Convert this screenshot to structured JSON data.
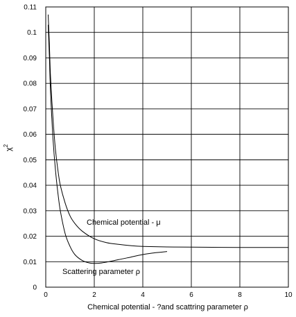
{
  "chart_data": {
    "type": "line",
    "xlabel": "Chemical potential - ?and scattring parameter ρ",
    "ylabel_base": "χ",
    "ylabel_sup": "2",
    "xlim": [
      0,
      10
    ],
    "ylim": [
      0,
      0.11
    ],
    "xticks": [
      "0",
      "2",
      "4",
      "6",
      "8",
      "10"
    ],
    "yticks": [
      "0",
      "0.01",
      "0.02",
      "0.03",
      "0.04",
      "0.05",
      "0.06",
      "0.07",
      "0.08",
      "0.09",
      "0.1",
      "0.11"
    ],
    "grid": true,
    "annotations": [
      {
        "text": "Chemical potential - μ"
      },
      {
        "text": "Scattering parameter ρ"
      }
    ],
    "series": [
      {
        "x": [
          0.1,
          0.15,
          0.2,
          0.3,
          0.4,
          0.5,
          0.6,
          0.8,
          1.0,
          1.2,
          1.5,
          2.0,
          2.5,
          3.0,
          3.5,
          4.0,
          5.0,
          6.0,
          8.0,
          10.0
        ],
        "y": [
          0.107,
          0.095,
          0.082,
          0.066,
          0.054,
          0.046,
          0.04,
          0.033,
          0.028,
          0.025,
          0.022,
          0.019,
          0.0175,
          0.0168,
          0.0163,
          0.016,
          0.0158,
          0.0157,
          0.0156,
          0.0156
        ]
      },
      {
        "x": [
          0.1,
          0.15,
          0.2,
          0.3,
          0.4,
          0.5,
          0.6,
          0.8,
          1.0,
          1.2,
          1.5,
          1.8,
          2.0,
          2.3,
          2.7,
          3.0,
          3.5,
          4.0,
          4.5,
          5.0
        ],
        "y": [
          0.103,
          0.09,
          0.076,
          0.058,
          0.046,
          0.037,
          0.03,
          0.021,
          0.016,
          0.0128,
          0.0105,
          0.0095,
          0.0093,
          0.0095,
          0.0102,
          0.0108,
          0.0118,
          0.0128,
          0.0135,
          0.014
        ]
      }
    ]
  }
}
